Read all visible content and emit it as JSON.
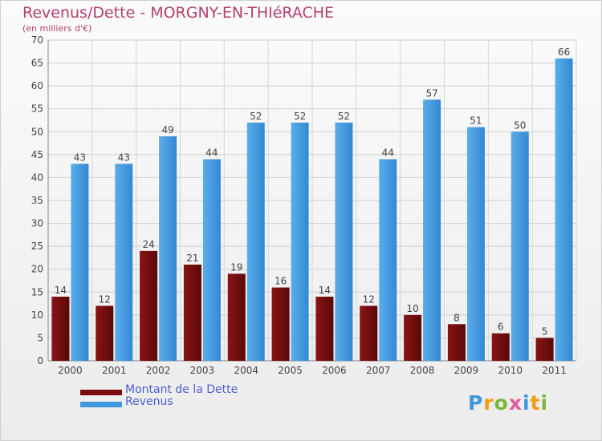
{
  "title": "Revenus/Dette - MORGNY-EN-THIéRACHE",
  "subtitle": "(en milliers d'€)",
  "colors": {
    "dette": "#7a0d0d",
    "revenus": "#3f98dd",
    "title": "#b5406b",
    "legend_text": "#4b5ed4"
  },
  "legend": {
    "dette": "Montant de la Dette",
    "revenus": "Revenus"
  },
  "logo": {
    "text": "Proxiti"
  },
  "chart_data": {
    "type": "bar",
    "categories": [
      "2000",
      "2001",
      "2002",
      "2003",
      "2004",
      "2005",
      "2006",
      "2007",
      "2008",
      "2009",
      "2010",
      "2011"
    ],
    "series": [
      {
        "name": "Montant de la Dette",
        "values": [
          14,
          12,
          24,
          21,
          19,
          16,
          14,
          12,
          10,
          8,
          6,
          5
        ]
      },
      {
        "name": "Revenus",
        "values": [
          43,
          43,
          49,
          44,
          52,
          52,
          52,
          44,
          57,
          51,
          50,
          66
        ]
      }
    ],
    "ylim": [
      0,
      70
    ],
    "yticks": [
      0,
      5,
      10,
      15,
      20,
      25,
      30,
      35,
      40,
      45,
      50,
      55,
      60,
      65,
      70
    ],
    "grid": true
  }
}
